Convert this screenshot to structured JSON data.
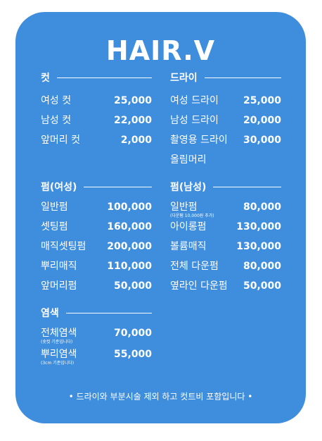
{
  "title": "HAIR.V",
  "cut": {
    "heading": "컷",
    "items": [
      {
        "name": "여성 컷",
        "price": "25,000"
      },
      {
        "name": "남성 컷",
        "price": "22,000"
      },
      {
        "name": "앞머리 컷",
        "price": "2,000"
      }
    ]
  },
  "dry": {
    "heading": "드라이",
    "items": [
      {
        "name": "여성 드라이",
        "price": "25,000"
      },
      {
        "name": "남성 드라이",
        "price": "20,000"
      },
      {
        "name": "촬영용 드라이",
        "price": "30,000"
      },
      {
        "name": "올림머리",
        "price": ""
      }
    ]
  },
  "perm_women": {
    "heading": "펌(여성)",
    "items": [
      {
        "name": "일반펌",
        "price": "100,000"
      },
      {
        "name": "셋팅펌",
        "price": "160,000"
      },
      {
        "name": "매직셋팅펌",
        "price": "200,000"
      },
      {
        "name": "뿌리매직",
        "price": "110,000"
      },
      {
        "name": "앞머리펌",
        "price": "50,000"
      }
    ]
  },
  "perm_men": {
    "heading": "펌(남성)",
    "items": [
      {
        "name": "일반펌",
        "note": "(다운펌 10,000원 추가)",
        "price": "80,000"
      },
      {
        "name": "아이롱펌",
        "price": "130,000"
      },
      {
        "name": "볼륨매직",
        "price": "130,000"
      },
      {
        "name": "전체 다운펌",
        "price": "80,000"
      },
      {
        "name": "옆라인 다운펌",
        "price": "50,000"
      }
    ]
  },
  "color": {
    "heading": "염색",
    "items": [
      {
        "name": "전체염색",
        "note": "(숏컷 기준입니다)",
        "price": "70,000"
      },
      {
        "name": "뿌리염색",
        "note": "(3cm 기준입니다)",
        "price": "55,000"
      }
    ]
  },
  "footer": "• 드라이와 부분시술 제외 하고 컷트비 포함입니다 •"
}
